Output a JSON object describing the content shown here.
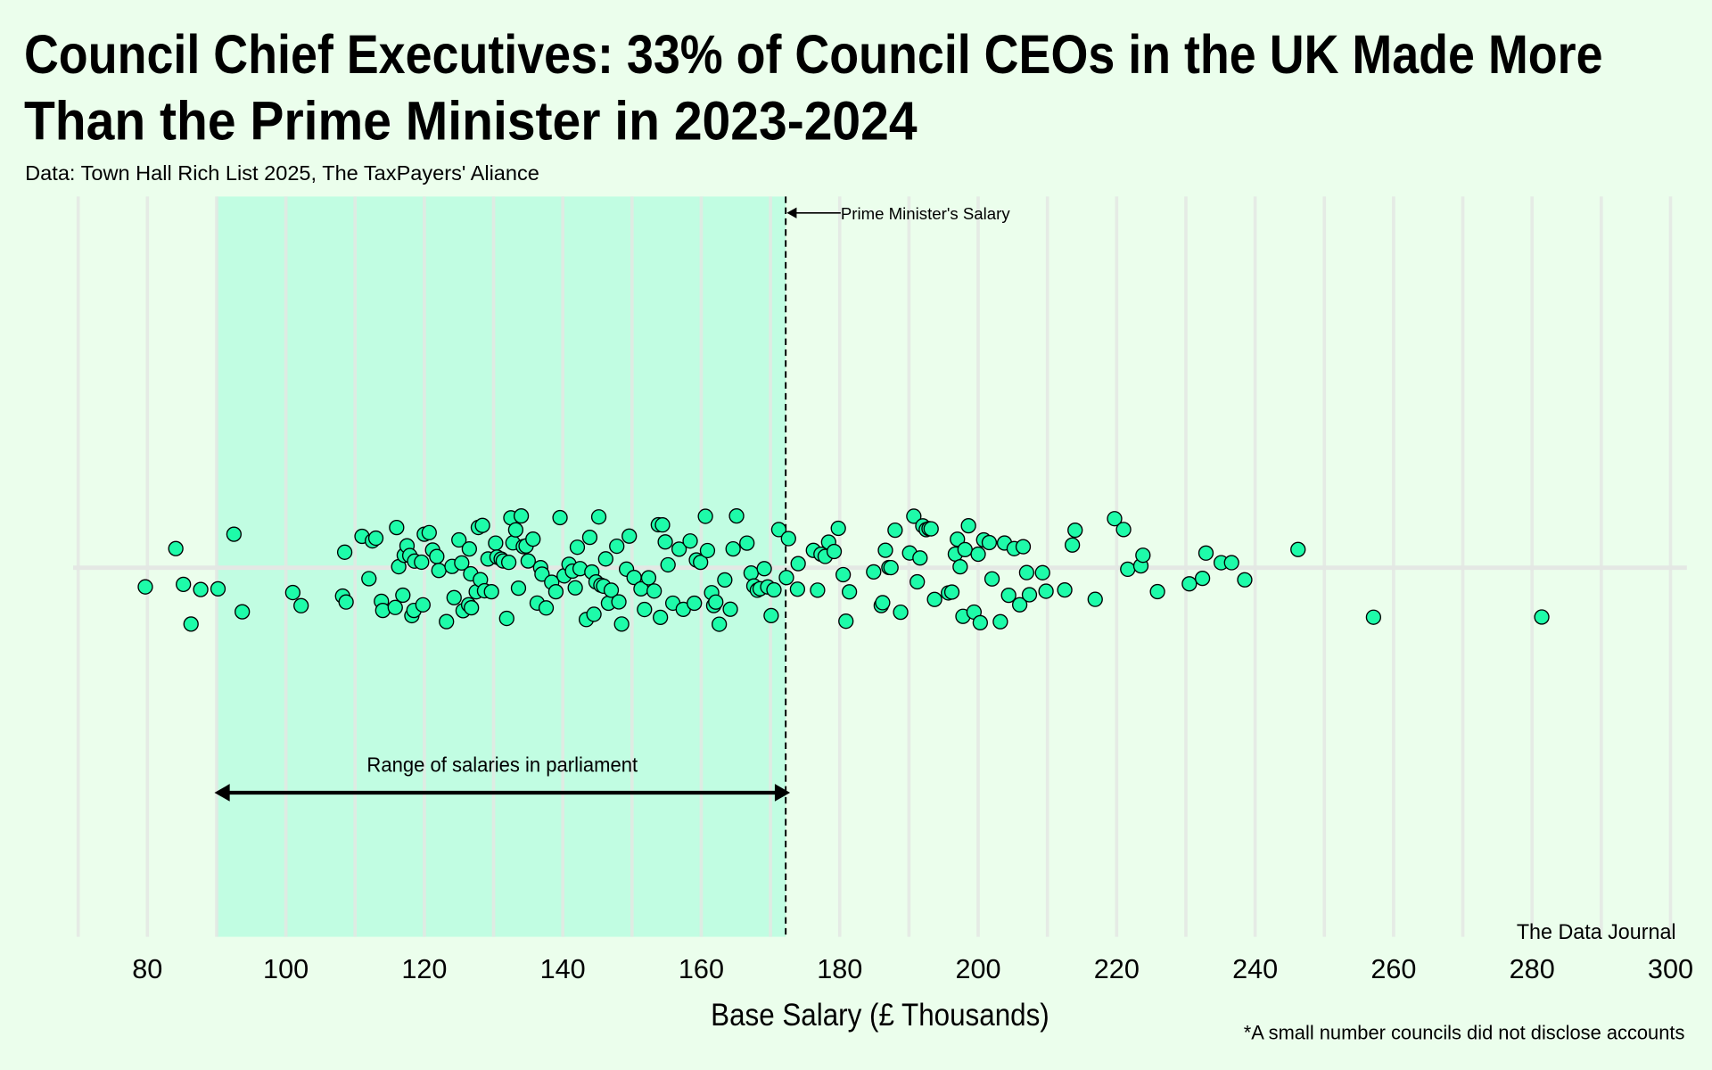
{
  "chart_data": {
    "type": "scatter",
    "title": "Council Chief Executives: 33% of Council CEOs in the UK Made More Than the Prime Minister in 2023-2024",
    "title_lines": [
      "Council Chief Executives: 33% of Council CEOs in the UK Made More",
      "Than the Prime Minister in 2023-2024"
    ],
    "subtitle": "Data: Town Hall Rich List 2025, The TaxPayers' Aliance",
    "xlabel": "Base Salary (£ Thousands)",
    "ylabel": "",
    "xlim": [
      70,
      300
    ],
    "xticks": [
      80,
      100,
      120,
      140,
      160,
      180,
      200,
      220,
      240,
      260,
      280,
      300
    ],
    "grid": true,
    "jitter": "vertical",
    "colors": {
      "background": "#ebfeec",
      "point": "#1efba9",
      "point_stroke": "#000000",
      "band": "#c1fde2",
      "grid": "#e4e8e4"
    },
    "annotations": {
      "pm_salary": {
        "value": 172.2,
        "label": "Prime Minister's Salary"
      },
      "parliament_range": {
        "from": 90,
        "to": 172.2,
        "label": "Range of salaries in parliament"
      }
    },
    "credit": "The Data Journal",
    "footnote": "*A small number councils did not disclose accounts",
    "values": [
      79.7,
      84.1,
      85.2,
      86.3,
      87.7,
      90.2,
      92.5,
      93.7,
      101,
      102.2,
      108.2,
      108.5,
      108.7,
      111,
      112,
      112.5,
      113,
      113.8,
      114,
      115.8,
      116,
      116.3,
      116.9,
      117.1,
      117.5,
      117.9,
      118.2,
      118.5,
      118.6,
      119.6,
      119.8,
      120,
      120.7,
      121.2,
      121.8,
      122.1,
      123.2,
      124,
      124.3,
      125,
      125.4,
      125.6,
      126.4,
      126.5,
      126.7,
      126.8,
      127.5,
      127.8,
      128.1,
      128.4,
      128.7,
      129.2,
      129.7,
      130.3,
      130.5,
      131.1,
      131.4,
      131.9,
      132.2,
      132.5,
      132.8,
      133.2,
      133.6,
      134,
      134.3,
      134.7,
      135,
      135.7,
      136.3,
      136.8,
      137,
      137.6,
      138.4,
      139,
      139.6,
      140.2,
      140.9,
      141.4,
      141.8,
      142.1,
      142.5,
      143.4,
      143.9,
      144.2,
      144.5,
      144.8,
      145.2,
      145.5,
      145.9,
      146.2,
      146.6,
      147,
      147.8,
      148.1,
      148.5,
      149.2,
      149.6,
      150.3,
      151.3,
      151.8,
      152.4,
      153.2,
      153.8,
      154.1,
      154.4,
      154.8,
      155.2,
      155.9,
      156.8,
      157.4,
      158.4,
      159,
      159.3,
      159.9,
      160.6,
      160.9,
      161.5,
      161.8,
      162.1,
      162.6,
      163.4,
      164.2,
      164.6,
      165.1,
      166.6,
      167.2,
      167.6,
      168.1,
      168.5,
      169.1,
      169.6,
      170.1,
      170.5,
      171.2,
      172.3,
      172.6,
      173.9,
      174,
      176.2,
      176.8,
      177.3,
      177.9,
      178.4,
      179.2,
      179.8,
      180.5,
      180.9,
      181.4,
      184.9,
      186,
      186.2,
      186.6,
      187.1,
      187.4,
      188,
      188.8,
      190.1,
      190.7,
      191.2,
      191.6,
      192,
      192.5,
      192.9,
      193.2,
      193.7,
      195.7,
      196.2,
      196.7,
      197,
      197.4,
      197.8,
      198.1,
      198.6,
      199.4,
      200,
      200.3,
      200.8,
      201.6,
      202,
      203.2,
      203.8,
      204.4,
      205.2,
      206,
      206.5,
      207,
      207.4,
      209.3,
      209.8,
      212.5,
      213.6,
      214,
      216.9,
      219.7,
      221,
      221.6,
      223.5,
      223.8,
      225.9,
      230.5,
      232.4,
      232.9,
      235.1,
      236.6,
      238.5,
      246.2,
      257.1,
      281.4
    ]
  }
}
